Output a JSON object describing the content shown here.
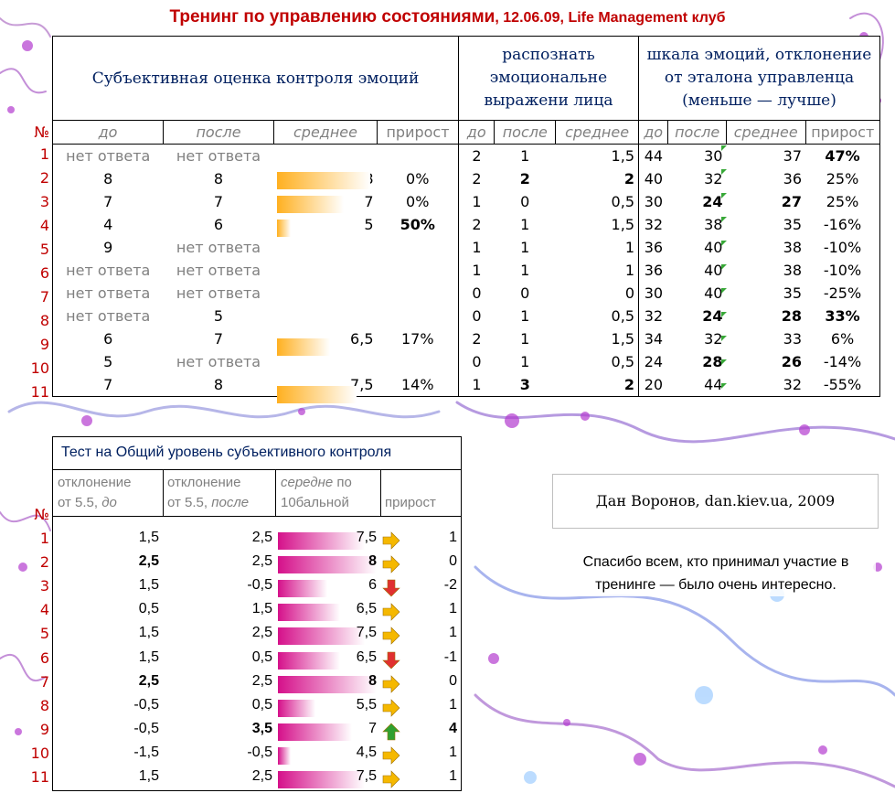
{
  "title": {
    "main": "Тренинг по управлению состояниями",
    "rest": ", 12.06.09, Life Management клуб"
  },
  "top": {
    "h_subjective": "Субъективная оценка контроля эмоций",
    "h_faces": "распознать эмоциональне выражени лица",
    "h_scale": "шкала эмоций, отклонение от эталона управленца (меньше — лучше)",
    "col_no": "№",
    "col_before": "до",
    "col_after": "после",
    "col_avg": "среднее",
    "col_gain": "прирост",
    "rows": [
      {
        "n": "1",
        "s_before": "нет ответа",
        "s_after": "нет ответа",
        "s_avg": "",
        "s_gain": "",
        "f_before": "2",
        "f_after": "1",
        "f_avg": "1,5",
        "e_before": "44",
        "e_after": "30",
        "e_avg": "37",
        "e_gain": "47%"
      },
      {
        "n": "2",
        "s_before": "8",
        "s_after": "8",
        "s_avg": "8",
        "s_gain": "0%",
        "f_before": "2",
        "f_after": "2",
        "f_avg": "2",
        "e_before": "40",
        "e_after": "32",
        "e_avg": "36",
        "e_gain": "25%"
      },
      {
        "n": "3",
        "s_before": "7",
        "s_after": "7",
        "s_avg": "7",
        "s_gain": "0%",
        "f_before": "1",
        "f_after": "0",
        "f_avg": "0,5",
        "e_before": "30",
        "e_after": "24",
        "e_avg": "27",
        "e_gain": "25%"
      },
      {
        "n": "4",
        "s_before": "4",
        "s_after": "6",
        "s_avg": "5",
        "s_gain": "50%",
        "f_before": "2",
        "f_after": "1",
        "f_avg": "1,5",
        "e_before": "32",
        "e_after": "38",
        "e_avg": "35",
        "e_gain": "-16%"
      },
      {
        "n": "5",
        "s_before": "9",
        "s_after": "нет ответа",
        "s_avg": "",
        "s_gain": "",
        "f_before": "1",
        "f_after": "1",
        "f_avg": "1",
        "e_before": "36",
        "e_after": "40",
        "e_avg": "38",
        "e_gain": "-10%"
      },
      {
        "n": "6",
        "s_before": "нет ответа",
        "s_after": "нет ответа",
        "s_avg": "",
        "s_gain": "",
        "f_before": "1",
        "f_after": "1",
        "f_avg": "1",
        "e_before": "36",
        "e_after": "40",
        "e_avg": "38",
        "e_gain": "-10%"
      },
      {
        "n": "7",
        "s_before": "нет ответа",
        "s_after": "нет ответа",
        "s_avg": "",
        "s_gain": "",
        "f_before": "0",
        "f_after": "0",
        "f_avg": "0",
        "e_before": "30",
        "e_after": "40",
        "e_avg": "35",
        "e_gain": "-25%"
      },
      {
        "n": "8",
        "s_before": "нет ответа",
        "s_after": "5",
        "s_avg": "",
        "s_gain": "",
        "f_before": "0",
        "f_after": "1",
        "f_avg": "0,5",
        "e_before": "32",
        "e_after": "24",
        "e_avg": "28",
        "e_gain": "33%"
      },
      {
        "n": "9",
        "s_before": "6",
        "s_after": "7",
        "s_avg": "6,5",
        "s_gain": "17%",
        "f_before": "2",
        "f_after": "1",
        "f_avg": "1,5",
        "e_before": "34",
        "e_after": "32",
        "e_avg": "33",
        "e_gain": "6%"
      },
      {
        "n": "10",
        "s_before": "5",
        "s_after": "нет ответа",
        "s_avg": "",
        "s_gain": "",
        "f_before": "0",
        "f_after": "1",
        "f_avg": "0,5",
        "e_before": "24",
        "e_after": "28",
        "e_avg": "26",
        "e_gain": "-14%"
      },
      {
        "n": "11",
        "s_before": "7",
        "s_after": "8",
        "s_avg": "7,5",
        "s_gain": "14%",
        "f_before": "1",
        "f_after": "3",
        "f_avg": "2",
        "e_before": "20",
        "e_after": "44",
        "e_avg": "32",
        "e_gain": "-55%"
      }
    ]
  },
  "bottom": {
    "title": "Тест на Общий уровень субъективного контроля",
    "col_no": "№",
    "col_dev_before_a": "отклонение",
    "col_dev_before_b": "от 5.5, ",
    "col_dev_before_c": "до",
    "col_dev_after_a": "отклонение",
    "col_dev_after_b": "от 5.5, ",
    "col_dev_after_c": "после",
    "col_avg_a": "середне",
    "col_avg_b": " по",
    "col_avg_c": "10бальной",
    "col_gain": "прирост",
    "rows": [
      {
        "n": "1",
        "dev_before": "1,5",
        "dev_after": "2,5",
        "avg": "7,5",
        "gain": "1",
        "arrow": "right"
      },
      {
        "n": "2",
        "dev_before": "2,5",
        "dev_after": "2,5",
        "avg": "8",
        "gain": "0",
        "arrow": "right"
      },
      {
        "n": "3",
        "dev_before": "1,5",
        "dev_after": "-0,5",
        "avg": "6",
        "gain": "-2",
        "arrow": "down"
      },
      {
        "n": "4",
        "dev_before": "0,5",
        "dev_after": "1,5",
        "avg": "6,5",
        "gain": "1",
        "arrow": "right"
      },
      {
        "n": "5",
        "dev_before": "1,5",
        "dev_after": "2,5",
        "avg": "7,5",
        "gain": "1",
        "arrow": "right"
      },
      {
        "n": "6",
        "dev_before": "1,5",
        "dev_after": "0,5",
        "avg": "6,5",
        "gain": "-1",
        "arrow": "down"
      },
      {
        "n": "7",
        "dev_before": "2,5",
        "dev_after": "2,5",
        "avg": "8",
        "gain": "0",
        "arrow": "right"
      },
      {
        "n": "8",
        "dev_before": "-0,5",
        "dev_after": "0,5",
        "avg": "5,5",
        "gain": "1",
        "arrow": "right"
      },
      {
        "n": "9",
        "dev_before": "-0,5",
        "dev_after": "3,5",
        "avg": "7",
        "gain": "4",
        "arrow": "up"
      },
      {
        "n": "10",
        "dev_before": "-1,5",
        "dev_after": "-0,5",
        "avg": "4,5",
        "gain": "1",
        "arrow": "right"
      },
      {
        "n": "11",
        "dev_before": "1,5",
        "dev_after": "2,5",
        "avg": "7,5",
        "gain": "1",
        "arrow": "right"
      }
    ]
  },
  "author": "Дан Воронов, dan.kiev.ua, 2009",
  "thanks": "Спасибо всем, кто принимал участие в тренинге — было очень интересно.",
  "colors": {
    "title": "#c00000",
    "rownum": "#c00000",
    "bar_orange": "#ffb020",
    "bar_pink": "#d5108a",
    "arrow_right": "#f5b800",
    "arrow_down": "#e03030",
    "arrow_up": "#30a030"
  }
}
